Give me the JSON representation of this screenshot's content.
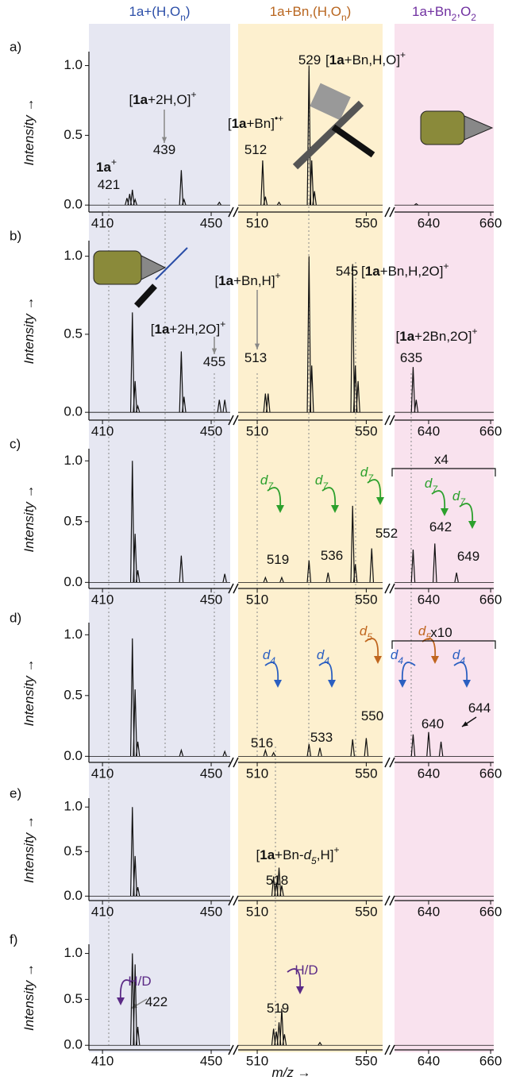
{
  "chart_data": [
    {
      "type": "stick",
      "label": "a)",
      "ylabel": [
        {
          "t": "Intensity",
          "i": true
        },
        {
          "t": " →"
        }
      ],
      "column_titles": [
        {
          "parts": [
            {
              "t": "1a+(H,O"
            },
            {
              "t": "n",
              "sub": true
            },
            {
              "t": ")"
            }
          ],
          "color": "#2b4ea8",
          "band": "#e6e7f2"
        },
        {
          "parts": [
            {
              "t": "1a+Bn,(H,O"
            },
            {
              "t": "n",
              "sub": true
            },
            {
              "t": ")"
            }
          ],
          "color": "#b8651e",
          "band": "#fdf0cf"
        },
        {
          "parts": [
            {
              "t": "1a+Bn"
            },
            {
              "t": "2",
              "sub": true
            },
            {
              "t": ",O"
            },
            {
              "t": "2",
              "sub": true
            }
          ],
          "color": "#7030a0",
          "band": "#f9e2ee"
        }
      ],
      "segments": [
        {
          "xlim": [
            405,
            457
          ],
          "xticks": [
            410,
            450
          ]
        },
        {
          "xlim": [
            503,
            556
          ],
          "xticks": [
            510,
            550
          ]
        },
        {
          "xlim": [
            629,
            661
          ],
          "xticks": [
            640,
            660
          ]
        }
      ],
      "ylim": [
        -0.05,
        1.1
      ],
      "yticks": [
        {
          "value": 0,
          "label": "0.0"
        },
        {
          "value": 0.5,
          "label": "0.5"
        },
        {
          "value": 1,
          "label": "1.0"
        }
      ],
      "x": [
        419,
        420,
        421,
        422,
        439,
        440,
        453,
        512,
        513,
        518,
        529,
        530,
        531,
        636
      ],
      "values": [
        0.05,
        0.08,
        0.11,
        0.04,
        0.25,
        0.04,
        0.02,
        0.32,
        0.06,
        0.02,
        1.0,
        0.32,
        0.1,
        0.01
      ],
      "annotations": [
        {
          "parts": [
            {
              "t": "1a",
              "b": true
            },
            {
              "t": "+",
              "sup": true
            }
          ]
        },
        {
          "parts": [
            {
              "t": "421"
            }
          ]
        },
        {
          "parts": [
            {
              "t": "["
            },
            {
              "t": "1a",
              "b": true
            },
            {
              "t": "+2H,O]"
            },
            {
              "t": "+",
              "sup": true
            }
          ]
        },
        {
          "parts": [
            {
              "t": "439"
            }
          ]
        },
        {
          "parts": [
            {
              "t": "["
            },
            {
              "t": "1a",
              "b": true
            },
            {
              "t": "+Bn]"
            },
            {
              "t": "•+",
              "sup": true
            }
          ]
        },
        {
          "parts": [
            {
              "t": "512"
            }
          ]
        },
        {
          "parts": [
            {
              "t": "529"
            }
          ]
        },
        {
          "parts": [
            {
              "t": "["
            },
            {
              "t": "1a",
              "b": true
            },
            {
              "t": "+Bn,H,O]"
            },
            {
              "t": "+",
              "sup": true
            }
          ]
        }
      ]
    },
    {
      "type": "stick",
      "label": "b)",
      "ylabel": [
        {
          "t": "Intensity",
          "i": true
        },
        {
          "t": " →"
        }
      ],
      "segments": [
        {
          "xlim": [
            405,
            457
          ],
          "xticks": [
            410,
            450
          ]
        },
        {
          "xlim": [
            503,
            556
          ],
          "xticks": [
            510,
            550
          ]
        },
        {
          "xlim": [
            629,
            661
          ],
          "xticks": [
            640,
            660
          ]
        }
      ],
      "ylim": [
        -0.05,
        1.1
      ],
      "yticks": [
        {
          "value": 0,
          "label": "0.0"
        },
        {
          "value": 0.5,
          "label": "0.5"
        },
        {
          "value": 1,
          "label": "1.0"
        }
      ],
      "x": [
        421,
        422,
        423,
        439,
        440,
        453,
        455,
        513,
        514,
        529,
        530,
        545,
        546,
        547,
        635,
        636
      ],
      "values": [
        0.64,
        0.2,
        0.04,
        0.39,
        0.1,
        0.08,
        0.08,
        0.12,
        0.12,
        1.0,
        0.3,
        0.95,
        0.3,
        0.2,
        0.29,
        0.08
      ],
      "annotations": [
        {
          "parts": [
            {
              "t": "["
            },
            {
              "t": "1a",
              "b": true
            },
            {
              "t": "+Bn,H]"
            },
            {
              "t": "+",
              "sup": true
            }
          ]
        },
        {
          "parts": [
            {
              "t": "545"
            }
          ]
        },
        {
          "parts": [
            {
              "t": "["
            },
            {
              "t": "1a",
              "b": true
            },
            {
              "t": "+Bn,H,2O]"
            },
            {
              "t": "+",
              "sup": true
            }
          ]
        },
        {
          "parts": [
            {
              "t": "["
            },
            {
              "t": "1a",
              "b": true
            },
            {
              "t": "+2H,2O]"
            },
            {
              "t": "+",
              "sup": true
            }
          ]
        },
        {
          "parts": [
            {
              "t": "455"
            }
          ]
        },
        {
          "parts": [
            {
              "t": "513"
            }
          ]
        },
        {
          "parts": [
            {
              "t": "["
            },
            {
              "t": "1a",
              "b": true
            },
            {
              "t": "+2Bn,2O]"
            },
            {
              "t": "+",
              "sup": true
            }
          ]
        },
        {
          "parts": [
            {
              "t": "635"
            }
          ]
        }
      ]
    },
    {
      "type": "stick",
      "label": "c)",
      "ylabel": [
        {
          "t": "Intensity",
          "i": true
        },
        {
          "t": " →"
        }
      ],
      "segments": [
        {
          "xlim": [
            405,
            457
          ],
          "xticks": [
            410,
            450
          ]
        },
        {
          "xlim": [
            503,
            556
          ],
          "xticks": [
            510,
            550
          ]
        },
        {
          "xlim": [
            629,
            661
          ],
          "xticks": [
            640,
            660
          ]
        }
      ],
      "ylim": [
        -0.05,
        1.1
      ],
      "yticks": [
        {
          "value": 0,
          "label": "0.0"
        },
        {
          "value": 0.5,
          "label": "0.5"
        },
        {
          "value": 1,
          "label": "1.0"
        }
      ],
      "x": [
        421,
        422,
        423,
        439,
        455,
        513,
        519,
        529,
        536,
        545,
        546,
        552,
        635,
        642,
        649
      ],
      "values": [
        1.0,
        0.4,
        0.1,
        0.22,
        0.07,
        0.04,
        0.04,
        0.18,
        0.08,
        0.63,
        0.15,
        0.28,
        0.27,
        0.32,
        0.08
      ],
      "annotations": [
        {
          "parts": [
            {
              "t": "x4"
            }
          ]
        },
        {
          "parts": [
            {
              "t": "d",
              "i": true
            },
            {
              "t": "7",
              "sub": true,
              "i": true
            }
          ],
          "color": "#2ca02c"
        },
        {
          "parts": [
            {
              "t": "d",
              "i": true
            },
            {
              "t": "7",
              "sub": true,
              "i": true
            }
          ],
          "color": "#2ca02c"
        },
        {
          "parts": [
            {
              "t": "d",
              "i": true
            },
            {
              "t": "7",
              "sub": true,
              "i": true
            }
          ],
          "color": "#2ca02c"
        },
        {
          "parts": [
            {
              "t": "d",
              "i": true
            },
            {
              "t": "7",
              "sub": true,
              "i": true
            }
          ],
          "color": "#2ca02c"
        },
        {
          "parts": [
            {
              "t": "d",
              "i": true
            },
            {
              "t": "7",
              "sub": true,
              "i": true
            }
          ],
          "color": "#2ca02c"
        },
        {
          "parts": [
            {
              "t": "519"
            }
          ]
        },
        {
          "parts": [
            {
              "t": "536"
            }
          ]
        },
        {
          "parts": [
            {
              "t": "552"
            }
          ]
        },
        {
          "parts": [
            {
              "t": "642"
            }
          ]
        },
        {
          "parts": [
            {
              "t": "649"
            }
          ]
        }
      ]
    },
    {
      "type": "stick",
      "label": "d)",
      "ylabel": [
        {
          "t": "Intensity",
          "i": true
        },
        {
          "t": " →"
        }
      ],
      "segments": [
        {
          "xlim": [
            405,
            457
          ],
          "xticks": [
            410,
            450
          ]
        },
        {
          "xlim": [
            503,
            556
          ],
          "xticks": [
            510,
            550
          ]
        },
        {
          "xlim": [
            629,
            661
          ],
          "xticks": [
            640,
            660
          ]
        }
      ],
      "ylim": [
        -0.05,
        1.1
      ],
      "yticks": [
        {
          "value": 0,
          "label": "0.0"
        },
        {
          "value": 0.5,
          "label": "0.5"
        },
        {
          "value": 1,
          "label": "1.0"
        }
      ],
      "x": [
        421,
        422,
        423,
        439,
        455,
        513,
        516,
        529,
        533,
        545,
        550,
        635,
        640,
        644
      ],
      "values": [
        0.97,
        0.55,
        0.12,
        0.05,
        0.04,
        0.05,
        0.03,
        0.1,
        0.07,
        0.14,
        0.15,
        0.18,
        0.2,
        0.12
      ],
      "annotations": [
        {
          "parts": [
            {
              "t": "x10"
            }
          ]
        },
        {
          "parts": [
            {
              "t": "d",
              "i": true
            },
            {
              "t": "4",
              "sub": true,
              "i": true
            }
          ],
          "color": "#2b5fc1"
        },
        {
          "parts": [
            {
              "t": "d",
              "i": true
            },
            {
              "t": "4",
              "sub": true,
              "i": true
            }
          ],
          "color": "#2b5fc1"
        },
        {
          "parts": [
            {
              "t": "d",
              "i": true
            },
            {
              "t": "4",
              "sub": true,
              "i": true
            }
          ],
          "color": "#2b5fc1"
        },
        {
          "parts": [
            {
              "t": "d",
              "i": true
            },
            {
              "t": "4",
              "sub": true,
              "i": true
            }
          ],
          "color": "#2b5fc1"
        },
        {
          "parts": [
            {
              "t": "d",
              "i": true
            },
            {
              "t": "5",
              "sub": true,
              "i": true
            }
          ],
          "color": "#c0661f"
        },
        {
          "parts": [
            {
              "t": "d",
              "i": true
            },
            {
              "t": "5",
              "sub": true,
              "i": true
            }
          ],
          "color": "#c0661f"
        },
        {
          "parts": [
            {
              "t": "516"
            }
          ]
        },
        {
          "parts": [
            {
              "t": "533"
            }
          ]
        },
        {
          "parts": [
            {
              "t": "550"
            }
          ]
        },
        {
          "parts": [
            {
              "t": "640"
            }
          ]
        },
        {
          "parts": [
            {
              "t": "644"
            }
          ]
        }
      ]
    },
    {
      "type": "stick",
      "label": "e)",
      "ylabel": [
        {
          "t": "Intensity",
          "i": true
        },
        {
          "t": " →"
        }
      ],
      "segments": [
        {
          "xlim": [
            405,
            457
          ],
          "xticks": [
            410,
            450
          ]
        },
        {
          "xlim": [
            503,
            556
          ],
          "xticks": [
            510,
            550
          ]
        },
        {
          "xlim": [
            629,
            661
          ],
          "xticks": [
            640,
            660
          ]
        }
      ],
      "ylim": [
        -0.05,
        1.1
      ],
      "yticks": [
        {
          "value": 0,
          "label": "0.0"
        },
        {
          "value": 0.5,
          "label": "0.5"
        },
        {
          "value": 1,
          "label": "1.0"
        }
      ],
      "x": [
        421,
        422,
        423,
        516,
        517,
        518,
        519
      ],
      "values": [
        1.0,
        0.45,
        0.1,
        0.22,
        0.15,
        0.32,
        0.12
      ],
      "annotations": [
        {
          "parts": [
            {
              "t": "["
            },
            {
              "t": "1a",
              "b": true
            },
            {
              "t": "+Bn-"
            },
            {
              "t": "d",
              "i": true
            },
            {
              "t": "5",
              "sub": true,
              "i": true
            },
            {
              "t": ",H]"
            },
            {
              "t": "+",
              "sup": true
            }
          ]
        },
        {
          "parts": [
            {
              "t": "518"
            }
          ]
        }
      ]
    },
    {
      "type": "stick",
      "label": "f)",
      "ylabel": [
        {
          "t": "Intensity",
          "i": true
        },
        {
          "t": " →"
        }
      ],
      "xlabel": [
        {
          "t": "m/z",
          "i": true
        },
        {
          "t": " →"
        }
      ],
      "segments": [
        {
          "xlim": [
            405,
            457
          ],
          "xticks": [
            410,
            450
          ]
        },
        {
          "xlim": [
            503,
            556
          ],
          "xticks": [
            510,
            550
          ]
        },
        {
          "xlim": [
            629,
            661
          ],
          "xticks": [
            640,
            660
          ]
        }
      ],
      "ylim": [
        -0.05,
        1.1
      ],
      "yticks": [
        {
          "value": 0,
          "label": "0.0"
        },
        {
          "value": 0.5,
          "label": "0.5"
        },
        {
          "value": 1,
          "label": "1.0"
        }
      ],
      "x": [
        421,
        422,
        423,
        516,
        517,
        518,
        519,
        520,
        533
      ],
      "values": [
        1.0,
        0.88,
        0.2,
        0.18,
        0.15,
        0.25,
        0.4,
        0.12,
        0.03
      ],
      "annotations": [
        {
          "parts": [
            {
              "t": "H/D"
            }
          ],
          "color": "#5b2a86"
        },
        {
          "parts": [
            {
              "t": "422"
            }
          ]
        },
        {
          "parts": [
            {
              "t": "H/D"
            }
          ],
          "color": "#5b2a86"
        },
        {
          "parts": [
            {
              "t": "519"
            }
          ]
        }
      ]
    }
  ]
}
